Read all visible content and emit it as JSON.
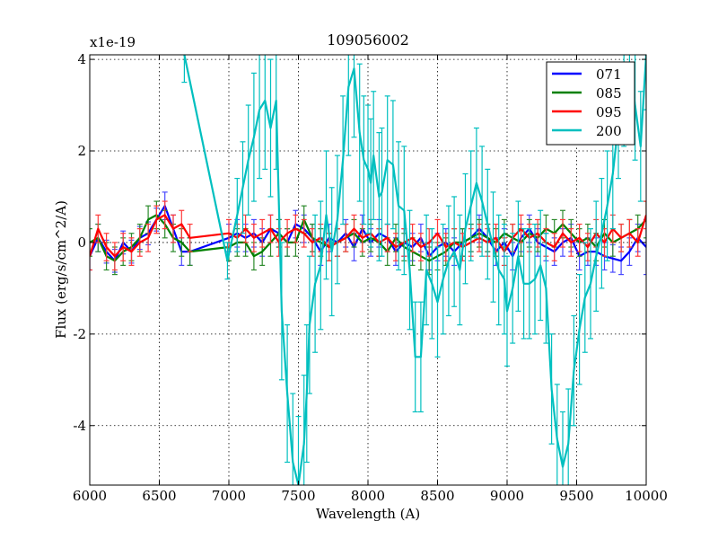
{
  "chart_data": {
    "type": "line",
    "title": "109056002",
    "xlabel": "Wavelength (A)",
    "ylabel": "Flux (erg/s/cm^2/A)",
    "y_scale_label": "x1e-19",
    "xlim": [
      6000,
      10000
    ],
    "ylim": [
      -5.3,
      4.1
    ],
    "grid": true,
    "legend_position": "top-right",
    "x_ticks": [
      6000,
      6500,
      7000,
      7500,
      8000,
      8500,
      9000,
      9500,
      10000
    ],
    "x_tick_labels": [
      "6000",
      "6500",
      "7000",
      "7500",
      "8000",
      "8500",
      "9000",
      "9500",
      "10000"
    ],
    "y_ticks": [
      -4,
      -2,
      0,
      2,
      4
    ],
    "y_tick_labels": [
      "-4",
      "-2",
      "0",
      "2",
      "4"
    ],
    "series": [
      {
        "name": "071",
        "color": "#0000ff",
        "error_color": "#4a4aff",
        "x": [
          6000,
          6060,
          6120,
          6180,
          6240,
          6300,
          6360,
          6420,
          6480,
          6540,
          6600,
          6660,
          6720,
          7000,
          7060,
          7120,
          7180,
          7240,
          7300,
          7360,
          7420,
          7480,
          7540,
          7600,
          7660,
          7720,
          7780,
          7840,
          7900,
          7960,
          8020,
          8080,
          8140,
          8200,
          8260,
          8320,
          8380,
          8440,
          8500,
          8560,
          8620,
          8680,
          8740,
          8800,
          8860,
          8920,
          8980,
          9040,
          9100,
          9160,
          9220,
          9280,
          9340,
          9400,
          9460,
          9520,
          9580,
          9640,
          9700,
          9760,
          9820,
          9880,
          9940,
          10000
        ],
        "y": [
          -0.3,
          0.1,
          -0.2,
          -0.4,
          0.0,
          -0.2,
          0.1,
          0.2,
          0.5,
          0.8,
          0.3,
          -0.2,
          -0.2,
          0.1,
          0.2,
          0.1,
          0.2,
          0.0,
          0.3,
          0.2,
          0.0,
          0.4,
          0.3,
          0.1,
          -0.2,
          0.1,
          0.0,
          0.2,
          -0.1,
          0.3,
          0.0,
          0.2,
          0.1,
          -0.2,
          0.0,
          -0.1,
          0.1,
          -0.3,
          -0.1,
          0.0,
          -0.2,
          0.0,
          0.1,
          0.3,
          0.1,
          -0.2,
          0.0,
          -0.3,
          0.1,
          0.3,
          0.0,
          -0.1,
          -0.2,
          0.0,
          0.1,
          -0.3,
          -0.2,
          -0.2,
          -0.3,
          -0.35,
          -0.4,
          -0.2,
          0.1,
          -0.1
        ],
        "err": [
          0.3,
          0.3,
          0.25,
          0.25,
          0.25,
          0.25,
          0.25,
          0.25,
          0.25,
          0.3,
          0.3,
          0.3,
          0.3,
          0.3,
          0.3,
          0.3,
          0.3,
          0.3,
          0.3,
          0.3,
          0.3,
          0.3,
          0.3,
          0.3,
          0.3,
          0.3,
          0.3,
          0.3,
          0.3,
          0.3,
          0.3,
          0.3,
          0.3,
          0.3,
          0.3,
          0.3,
          0.3,
          0.3,
          0.3,
          0.3,
          0.3,
          0.3,
          0.3,
          0.3,
          0.3,
          0.3,
          0.3,
          0.3,
          0.3,
          0.3,
          0.3,
          0.3,
          0.3,
          0.3,
          0.3,
          0.3,
          0.3,
          0.3,
          0.3,
          0.3,
          0.3,
          0.3,
          0.3,
          0.6
        ]
      },
      {
        "name": "085",
        "color": "#008000",
        "error_color": "#2e8b2e",
        "x": [
          6000,
          6060,
          6120,
          6180,
          6240,
          6300,
          6360,
          6420,
          6480,
          6540,
          6600,
          6660,
          6720,
          7000,
          7060,
          7120,
          7180,
          7240,
          7300,
          7360,
          7420,
          7480,
          7540,
          7600,
          7660,
          7720,
          7780,
          7840,
          7900,
          7960,
          8020,
          8080,
          8140,
          8200,
          8260,
          8320,
          8380,
          8440,
          8500,
          8560,
          8620,
          8680,
          8740,
          8800,
          8860,
          8920,
          8980,
          9040,
          9100,
          9160,
          9220,
          9280,
          9340,
          9400,
          9460,
          9520,
          9580,
          9640,
          9700,
          9760,
          9820,
          9880,
          9940,
          10000
        ],
        "y": [
          0.0,
          0.1,
          -0.3,
          -0.4,
          -0.2,
          -0.1,
          0.1,
          0.5,
          0.6,
          0.4,
          0.1,
          0.0,
          -0.2,
          -0.1,
          0.0,
          0.0,
          -0.3,
          -0.2,
          0.0,
          0.2,
          0.0,
          0.0,
          0.5,
          0.1,
          0.0,
          -0.1,
          0.0,
          0.1,
          0.2,
          0.0,
          0.1,
          0.0,
          -0.2,
          0.1,
          -0.1,
          -0.2,
          -0.3,
          -0.4,
          -0.3,
          -0.2,
          0.0,
          0.0,
          0.1,
          0.2,
          0.1,
          0.0,
          0.2,
          0.1,
          0.0,
          0.2,
          0.1,
          0.3,
          0.2,
          0.4,
          0.2,
          0.0,
          0.1,
          -0.1,
          0.2,
          0.0,
          0.1,
          0.2,
          0.3,
          0.5
        ],
        "err": [
          0.3,
          0.3,
          0.3,
          0.3,
          0.3,
          0.3,
          0.3,
          0.3,
          0.3,
          0.3,
          0.3,
          0.3,
          0.3,
          0.3,
          0.3,
          0.3,
          0.3,
          0.3,
          0.3,
          0.3,
          0.3,
          0.3,
          0.3,
          0.3,
          0.3,
          0.3,
          0.3,
          0.3,
          0.3,
          0.3,
          0.3,
          0.3,
          0.3,
          0.3,
          0.3,
          0.3,
          0.3,
          0.3,
          0.3,
          0.3,
          0.3,
          0.3,
          0.3,
          0.3,
          0.3,
          0.3,
          0.3,
          0.3,
          0.3,
          0.3,
          0.3,
          0.3,
          0.3,
          0.3,
          0.3,
          0.3,
          0.3,
          0.3,
          0.3,
          0.3,
          0.3,
          0.3,
          0.3,
          0.4
        ]
      },
      {
        "name": "095",
        "color": "#ff0000",
        "error_color": "#ff3a3a",
        "x": [
          6000,
          6060,
          6120,
          6180,
          6240,
          6300,
          6360,
          6420,
          6480,
          6540,
          6600,
          6660,
          6720,
          7000,
          7060,
          7120,
          7180,
          7240,
          7300,
          7360,
          7420,
          7480,
          7540,
          7600,
          7660,
          7720,
          7780,
          7840,
          7900,
          7960,
          8020,
          8080,
          8140,
          8200,
          8260,
          8320,
          8380,
          8440,
          8500,
          8560,
          8620,
          8680,
          8740,
          8800,
          8860,
          8920,
          8980,
          9040,
          9100,
          9160,
          9220,
          9280,
          9340,
          9400,
          9460,
          9520,
          9580,
          9640,
          9700,
          9760,
          9820,
          9880,
          9940,
          10000
        ],
        "y": [
          -0.3,
          0.3,
          -0.1,
          -0.3,
          -0.1,
          -0.2,
          0.0,
          0.1,
          0.5,
          0.6,
          0.3,
          0.4,
          0.1,
          0.2,
          0.1,
          0.3,
          0.1,
          0.2,
          0.3,
          0.0,
          0.2,
          0.3,
          0.2,
          0.0,
          0.1,
          -0.1,
          0.0,
          0.1,
          0.3,
          0.1,
          0.2,
          0.0,
          0.1,
          -0.1,
          0.0,
          0.1,
          -0.1,
          0.0,
          0.2,
          -0.1,
          0.0,
          -0.1,
          0.0,
          0.1,
          0.0,
          0.1,
          -0.2,
          0.1,
          0.3,
          0.1,
          0.2,
          0.0,
          -0.1,
          0.2,
          0.0,
          0.1,
          -0.1,
          0.2,
          0.0,
          0.3,
          0.1,
          0.2,
          0.0,
          0.6
        ],
        "err": [
          0.3,
          0.3,
          0.3,
          0.3,
          0.3,
          0.3,
          0.3,
          0.3,
          0.3,
          0.3,
          0.3,
          0.3,
          0.3,
          0.3,
          0.3,
          0.3,
          0.3,
          0.3,
          0.3,
          0.3,
          0.3,
          0.3,
          0.3,
          0.3,
          0.3,
          0.3,
          0.3,
          0.3,
          0.3,
          0.3,
          0.3,
          0.3,
          0.3,
          0.3,
          0.3,
          0.3,
          0.3,
          0.3,
          0.3,
          0.3,
          0.3,
          0.3,
          0.3,
          0.3,
          0.3,
          0.3,
          0.3,
          0.3,
          0.3,
          0.3,
          0.3,
          0.3,
          0.3,
          0.3,
          0.3,
          0.3,
          0.3,
          0.3,
          0.3,
          0.3,
          0.3,
          0.3,
          0.3,
          0.3
        ]
      },
      {
        "name": "200",
        "color": "#00bfbf",
        "error_color": "#00bfbf",
        "x": [
          6680,
          6990,
          7060,
          7100,
          7140,
          7180,
          7220,
          7260,
          7300,
          7340,
          7380,
          7420,
          7460,
          7500,
          7540,
          7560,
          7580,
          7620,
          7660,
          7700,
          7740,
          7780,
          7820,
          7860,
          7900,
          7940,
          7970,
          8000,
          8020,
          8040,
          8080,
          8100,
          8140,
          8180,
          8220,
          8260,
          8300,
          8340,
          8380,
          8420,
          8460,
          8500,
          8540,
          8580,
          8620,
          8660,
          8700,
          8740,
          8780,
          8820,
          8860,
          8900,
          8940,
          8980,
          9000,
          9040,
          9080,
          9120,
          9160,
          9200,
          9240,
          9280,
          9320,
          9360,
          9400,
          9440,
          9480,
          9520,
          9560,
          9600,
          9640,
          9680,
          9720,
          9760,
          9800,
          9840,
          9880,
          9920,
          9960,
          10000
        ],
        "y": [
          4.1,
          -0.4,
          0.6,
          1.2,
          1.8,
          2.3,
          2.9,
          3.1,
          2.5,
          3.1,
          -1.5,
          -3.3,
          -4.8,
          -5.3,
          -4.4,
          -3.3,
          -1.8,
          -0.9,
          -0.5,
          0.6,
          -0.2,
          0.5,
          1.8,
          3.4,
          3.8,
          2.4,
          1.8,
          1.6,
          1.3,
          1.9,
          1.0,
          1.1,
          1.8,
          1.7,
          0.8,
          0.7,
          -0.6,
          -2.5,
          -2.5,
          -0.6,
          -0.9,
          -1.3,
          -0.8,
          -0.4,
          -0.2,
          -0.6,
          0.3,
          0.8,
          1.3,
          0.9,
          0.4,
          -0.1,
          -0.6,
          -0.8,
          -1.5,
          -1.0,
          -0.3,
          -0.9,
          -0.9,
          -0.8,
          -0.5,
          -1.0,
          -3.2,
          -4.3,
          -4.9,
          -4.4,
          -2.8,
          -1.9,
          -1.2,
          -0.9,
          -0.3,
          0.2,
          0.8,
          1.5,
          2.6,
          3.3,
          3.9,
          3.0,
          2.1,
          4.1
        ],
        "err": [
          0.6,
          0.4,
          0.8,
          1.0,
          1.2,
          1.4,
          1.5,
          1.5,
          1.5,
          1.5,
          1.5,
          1.5,
          1.5,
          1.5,
          1.5,
          1.5,
          1.5,
          1.5,
          1.4,
          1.4,
          1.4,
          1.4,
          1.4,
          1.5,
          1.5,
          1.5,
          1.4,
          1.4,
          1.4,
          1.4,
          1.4,
          1.4,
          1.4,
          1.4,
          1.4,
          1.4,
          1.3,
          1.2,
          1.2,
          1.2,
          1.2,
          1.2,
          1.2,
          1.2,
          1.2,
          1.2,
          1.2,
          1.2,
          1.2,
          1.2,
          1.2,
          1.2,
          1.2,
          1.2,
          1.2,
          1.2,
          1.2,
          1.2,
          1.2,
          1.2,
          1.2,
          1.2,
          1.2,
          1.2,
          1.2,
          1.2,
          1.2,
          1.2,
          1.2,
          1.2,
          1.2,
          1.2,
          1.2,
          1.2,
          1.2,
          1.2,
          1.2,
          1.2,
          1.2,
          1.2
        ]
      }
    ]
  }
}
